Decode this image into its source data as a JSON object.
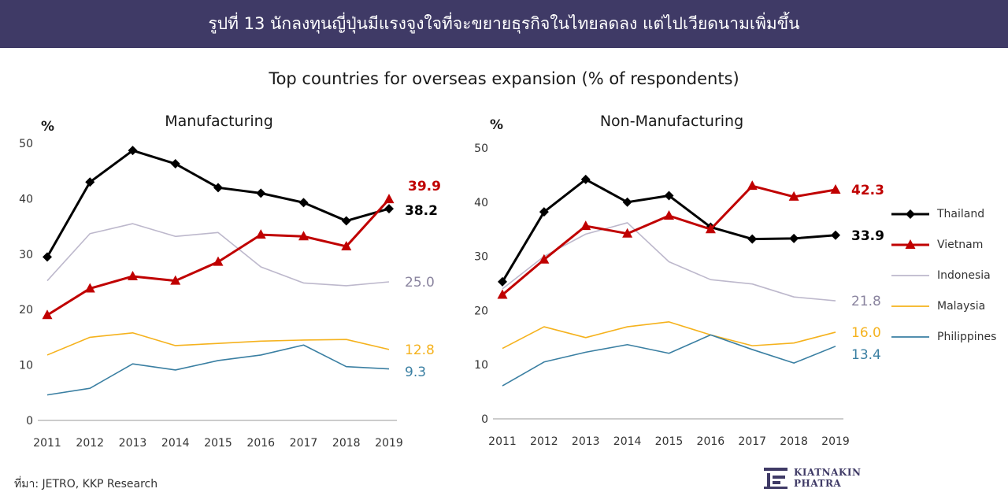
{
  "banner": {
    "title": "รูปที่ 13 นักลงทุนญี่ปุ่นมีแรงจูงใจที่จะขยายธุรกิจในไทยลดลง แต่ไปเวียดนามเพิ่มขึ้น"
  },
  "subtitle": "Top countries for overseas expansion (% of respondents)",
  "source": "ที่มา: JETRO, KKP Research",
  "logo": {
    "line1": "KIATNAKIN",
    "line2": "PHATRA"
  },
  "legend": [
    {
      "name": "Thailand",
      "color": "#000000",
      "marker": "diamond"
    },
    {
      "name": "Vietnam",
      "color": "#c00000",
      "marker": "triangle"
    },
    {
      "name": "Indonesia",
      "color": "#bdb8cc",
      "marker": "none"
    },
    {
      "name": "Malaysia",
      "color": "#f5b21d",
      "marker": "none"
    },
    {
      "name": "Philippines",
      "color": "#3a7fa2",
      "marker": "none"
    }
  ],
  "chart_data": [
    {
      "type": "line",
      "title": "Manufacturing",
      "ylabel": "%",
      "x": [
        "2011",
        "2012",
        "2013",
        "2014",
        "2015",
        "2016",
        "2017",
        "2018",
        "2019"
      ],
      "ylim": [
        0,
        50
      ],
      "yticks": [
        0,
        10,
        20,
        30,
        40,
        50
      ],
      "grid": false,
      "series": [
        {
          "name": "Thailand",
          "color": "#000000",
          "marker": "diamond",
          "values": [
            29.5,
            43.0,
            48.7,
            46.3,
            42.0,
            41.0,
            39.3,
            36.0,
            38.2
          ],
          "end_label": "38.2"
        },
        {
          "name": "Vietnam",
          "color": "#c00000",
          "marker": "triangle",
          "values": [
            19.0,
            23.8,
            26.0,
            25.2,
            28.6,
            33.5,
            33.2,
            31.4,
            39.9
          ],
          "end_label": "39.9"
        },
        {
          "name": "Indonesia",
          "color": "#bdb8cc",
          "marker": "none",
          "values": [
            25.2,
            33.7,
            35.5,
            33.2,
            33.9,
            27.7,
            24.8,
            24.3,
            25.0
          ],
          "end_label": "25.0"
        },
        {
          "name": "Malaysia",
          "color": "#f5b21d",
          "marker": "none",
          "values": [
            11.8,
            15.0,
            15.8,
            13.5,
            13.9,
            14.3,
            14.5,
            14.6,
            12.8
          ],
          "end_label": "12.8"
        },
        {
          "name": "Philippines",
          "color": "#3a7fa2",
          "marker": "none",
          "values": [
            4.6,
            5.8,
            10.2,
            9.1,
            10.8,
            11.8,
            13.6,
            9.7,
            9.3
          ],
          "end_label": "9.3"
        }
      ]
    },
    {
      "type": "line",
      "title": "Non-Manufacturing",
      "ylabel": "%",
      "x": [
        "2011",
        "2012",
        "2013",
        "2014",
        "2015",
        "2016",
        "2017",
        "2018",
        "2019"
      ],
      "ylim": [
        0,
        50
      ],
      "yticks": [
        0,
        10,
        20,
        30,
        40,
        50
      ],
      "grid": false,
      "series": [
        {
          "name": "Thailand",
          "color": "#000000",
          "marker": "diamond",
          "values": [
            25.3,
            38.2,
            44.2,
            40.0,
            41.2,
            35.4,
            33.2,
            33.3,
            33.9
          ],
          "end_label": "33.9"
        },
        {
          "name": "Vietnam",
          "color": "#c00000",
          "marker": "triangle",
          "values": [
            22.9,
            29.4,
            35.6,
            34.2,
            37.5,
            35.0,
            43.0,
            41.0,
            42.3
          ],
          "end_label": "42.3"
        },
        {
          "name": "Indonesia",
          "color": "#bdb8cc",
          "marker": "none",
          "values": [
            24.0,
            30.0,
            34.1,
            36.2,
            29.0,
            25.7,
            24.9,
            22.5,
            21.8
          ],
          "end_label": "21.8"
        },
        {
          "name": "Malaysia",
          "color": "#f5b21d",
          "marker": "none",
          "values": [
            13.0,
            17.0,
            15.0,
            17.0,
            17.9,
            15.5,
            13.5,
            14.0,
            16.0
          ],
          "end_label": "16.0"
        },
        {
          "name": "Philippines",
          "color": "#3a7fa2",
          "marker": "none",
          "values": [
            6.1,
            10.5,
            12.3,
            13.7,
            12.1,
            15.5,
            12.8,
            10.3,
            13.4
          ],
          "end_label": "13.4"
        }
      ]
    }
  ]
}
